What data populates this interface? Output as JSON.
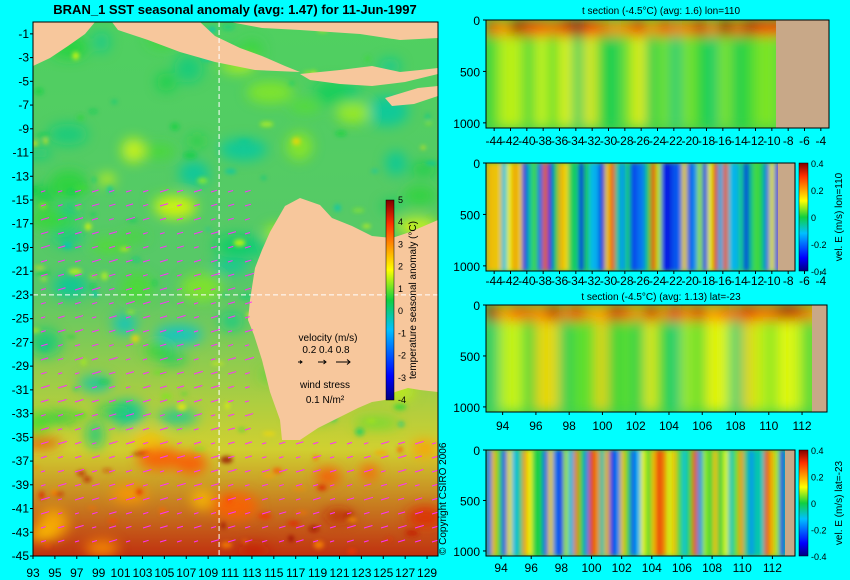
{
  "main_title": "BRAN_1 SST seasonal anomaly (avg: 1.47) for 11-Jun-1997",
  "copyright": "© Copyright CSIRO 2006",
  "map": {
    "x_ticks": [
      "93",
      "95",
      "97",
      "99",
      "101",
      "103",
      "105",
      "107",
      "109",
      "111",
      "113",
      "115",
      "117",
      "119",
      "121",
      "123",
      "125",
      "127",
      "129"
    ],
    "y_ticks": [
      "-1",
      "-3",
      "-5",
      "-7",
      "-9",
      "-11",
      "-13",
      "-15",
      "-17",
      "-19",
      "-21",
      "-23",
      "-25",
      "-27",
      "-29",
      "-31",
      "-33",
      "-35",
      "-37",
      "-39",
      "-41",
      "-43",
      "-45"
    ],
    "xlim": [
      93,
      130
    ],
    "ylim": [
      -45,
      0
    ],
    "section_lon": 110,
    "section_lat": -23,
    "colorbar": {
      "label": "temperature seasonal anomaly (°C)",
      "ticks": [
        "5",
        "4",
        "3",
        "2",
        "1",
        "0",
        "-1",
        "-2",
        "-3",
        "-4"
      ],
      "range": [
        -4,
        5
      ]
    },
    "velocity_legend": {
      "title": "velocity (m/s)",
      "values": "0.2 0.4 0.8"
    },
    "wind_legend": {
      "title": "wind stress",
      "value": "0.1 N/m²"
    }
  },
  "panels": [
    {
      "title": "t section (-4.5°C) (avg: 1.6) lon=110",
      "x_ticks": [
        "-44",
        "-42",
        "-40",
        "-38",
        "-36",
        "-34",
        "-32",
        "-30",
        "-28",
        "-26",
        "-24",
        "-22",
        "-20",
        "-18",
        "-16",
        "-14",
        "-12",
        "-10",
        "-8",
        "-6",
        "-4"
      ],
      "y_ticks": [
        "0",
        "500",
        "1000"
      ],
      "cb_label": "",
      "cb_ticks": []
    },
    {
      "title": "",
      "x_ticks": [
        "-44",
        "-42",
        "-40",
        "-38",
        "-36",
        "-34",
        "-32",
        "-30",
        "-28",
        "-26",
        "-24",
        "-22",
        "-20",
        "-18",
        "-16",
        "-14",
        "-12",
        "-10",
        "-8",
        "-6",
        "-4"
      ],
      "y_ticks": [
        "0",
        "500",
        "1000"
      ],
      "cb_label": "vel. E (m/s) lon=110",
      "cb_ticks": [
        "0.4",
        "0.2",
        "0",
        "-0.2",
        "-0.4"
      ]
    },
    {
      "title": "t section (-4.5°C) (avg: 1.13) lat=-23",
      "x_ticks": [
        "94",
        "96",
        "98",
        "100",
        "102",
        "104",
        "106",
        "108",
        "110",
        "112"
      ],
      "y_ticks": [
        "0",
        "500",
        "1000"
      ],
      "cb_label": "",
      "cb_ticks": []
    },
    {
      "title": "",
      "x_ticks": [
        "94",
        "96",
        "98",
        "100",
        "102",
        "104",
        "106",
        "108",
        "110",
        "112"
      ],
      "y_ticks": [
        "0",
        "500",
        "1000"
      ],
      "cb_label": "vel. E (m/s) lat=-23",
      "cb_ticks": [
        "0.4",
        "0.2",
        "0",
        "-0.2",
        "-0.4"
      ]
    }
  ],
  "chart_data": [
    {
      "type": "heatmap",
      "title": "BRAN_1 SST seasonal anomaly (avg: 1.47) for 11-Jun-1997",
      "xlabel": "",
      "ylabel": "",
      "xlim": [
        93,
        130
      ],
      "ylim": [
        -45,
        0
      ],
      "colorbar_label": "temperature seasonal anomaly (°C)",
      "colorbar_range": [
        -4,
        5
      ],
      "average": 1.47
    },
    {
      "type": "heatmap",
      "title": "t section (-4.5°C) (avg: 1.6) lon=110",
      "xlim": [
        -45,
        -3
      ],
      "ylim": [
        1050,
        0
      ],
      "average": 1.6
    },
    {
      "type": "heatmap",
      "title": "",
      "xlim": [
        -45,
        -3
      ],
      "ylim": [
        1050,
        0
      ],
      "colorbar_label": "vel. E (m/s) lon=110",
      "colorbar_range": [
        -0.4,
        0.4
      ]
    },
    {
      "type": "heatmap",
      "title": "t section (-4.5°C) (avg: 1.13) lat=-23",
      "xlim": [
        93,
        113.5
      ],
      "ylim": [
        1050,
        0
      ],
      "average": 1.13
    },
    {
      "type": "heatmap",
      "title": "",
      "xlim": [
        93,
        113.5
      ],
      "ylim": [
        1050,
        0
      ],
      "colorbar_label": "vel. E (m/s) lat=-23",
      "colorbar_range": [
        -0.4,
        0.4
      ]
    }
  ]
}
